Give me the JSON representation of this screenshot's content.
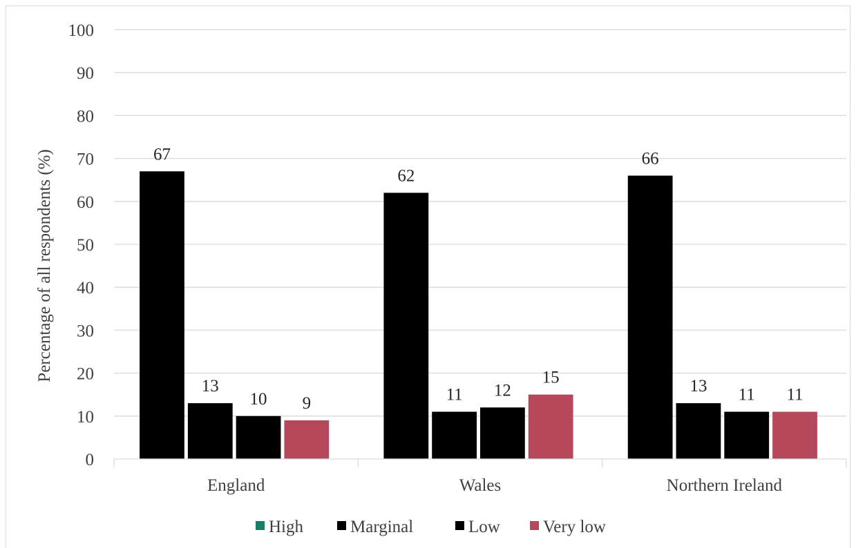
{
  "chart_data": {
    "type": "bar",
    "title": "",
    "xlabel": "",
    "ylabel": "Percentage of all respondents (%)",
    "ylim": [
      0,
      100
    ],
    "yticks": [
      0,
      10,
      20,
      30,
      40,
      50,
      60,
      70,
      80,
      90,
      100
    ],
    "grid": true,
    "legend_position": "bottom",
    "categories": [
      "England",
      "Wales",
      "Northern Ireland"
    ],
    "series": [
      {
        "name": "High",
        "color": "#1a7f64",
        "values": [
          67,
          62,
          66
        ]
      },
      {
        "name": "Marginal",
        "color": "#000000",
        "values": [
          13,
          11,
          13
        ]
      },
      {
        "name": "Low",
        "color": "#000000",
        "values": [
          10,
          12,
          11
        ]
      },
      {
        "name": "Very low",
        "color": "#b5495b",
        "values": [
          9,
          15,
          11
        ]
      }
    ]
  }
}
